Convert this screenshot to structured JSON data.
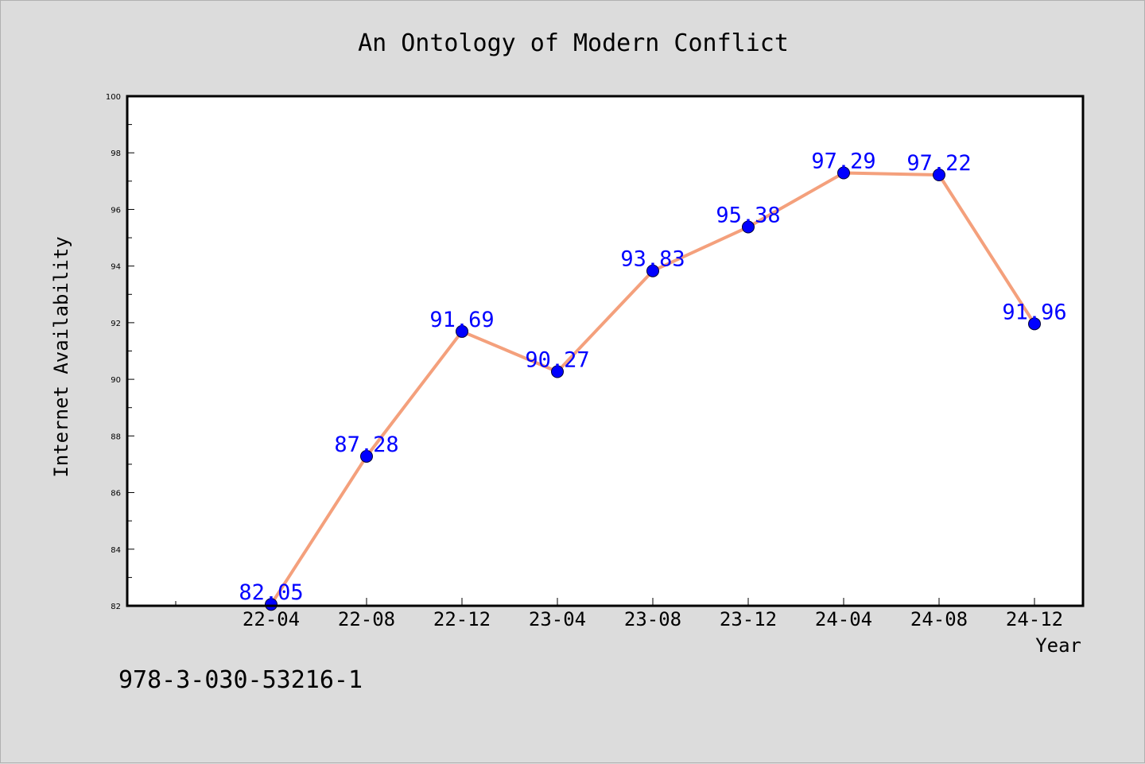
{
  "footer_text": "978-3-030-53216-1",
  "chart_data": {
    "type": "line",
    "title": "An Ontology of Modern Conflict",
    "xlabel": "Year",
    "ylabel": "Internet Availability",
    "categories": [
      "22-04",
      "22-08",
      "22-12",
      "23-04",
      "23-08",
      "23-12",
      "24-04",
      "24-08",
      "24-12"
    ],
    "series": [
      {
        "values": [
          82.05,
          87.28,
          91.69,
          90.27,
          93.83,
          95.38,
          97.29,
          97.22,
          91.96
        ],
        "line_color": "#f4a07c",
        "marker_color": "#0000ff"
      }
    ],
    "data_labels": [
      "82.05",
      "87.28",
      "91.69",
      "90.27",
      "93.83",
      "95.38",
      "97.29",
      "97.22",
      "91.96"
    ],
    "ylim": [
      82,
      100
    ],
    "yticks": [
      "82",
      "84",
      "86",
      "88",
      "90",
      "92",
      "94",
      "96",
      "98",
      "100"
    ],
    "grid": false,
    "legend": "none",
    "label_color": "#0000ff",
    "plot_background": "#ffffff",
    "figure_background": "#dcdcdc"
  }
}
